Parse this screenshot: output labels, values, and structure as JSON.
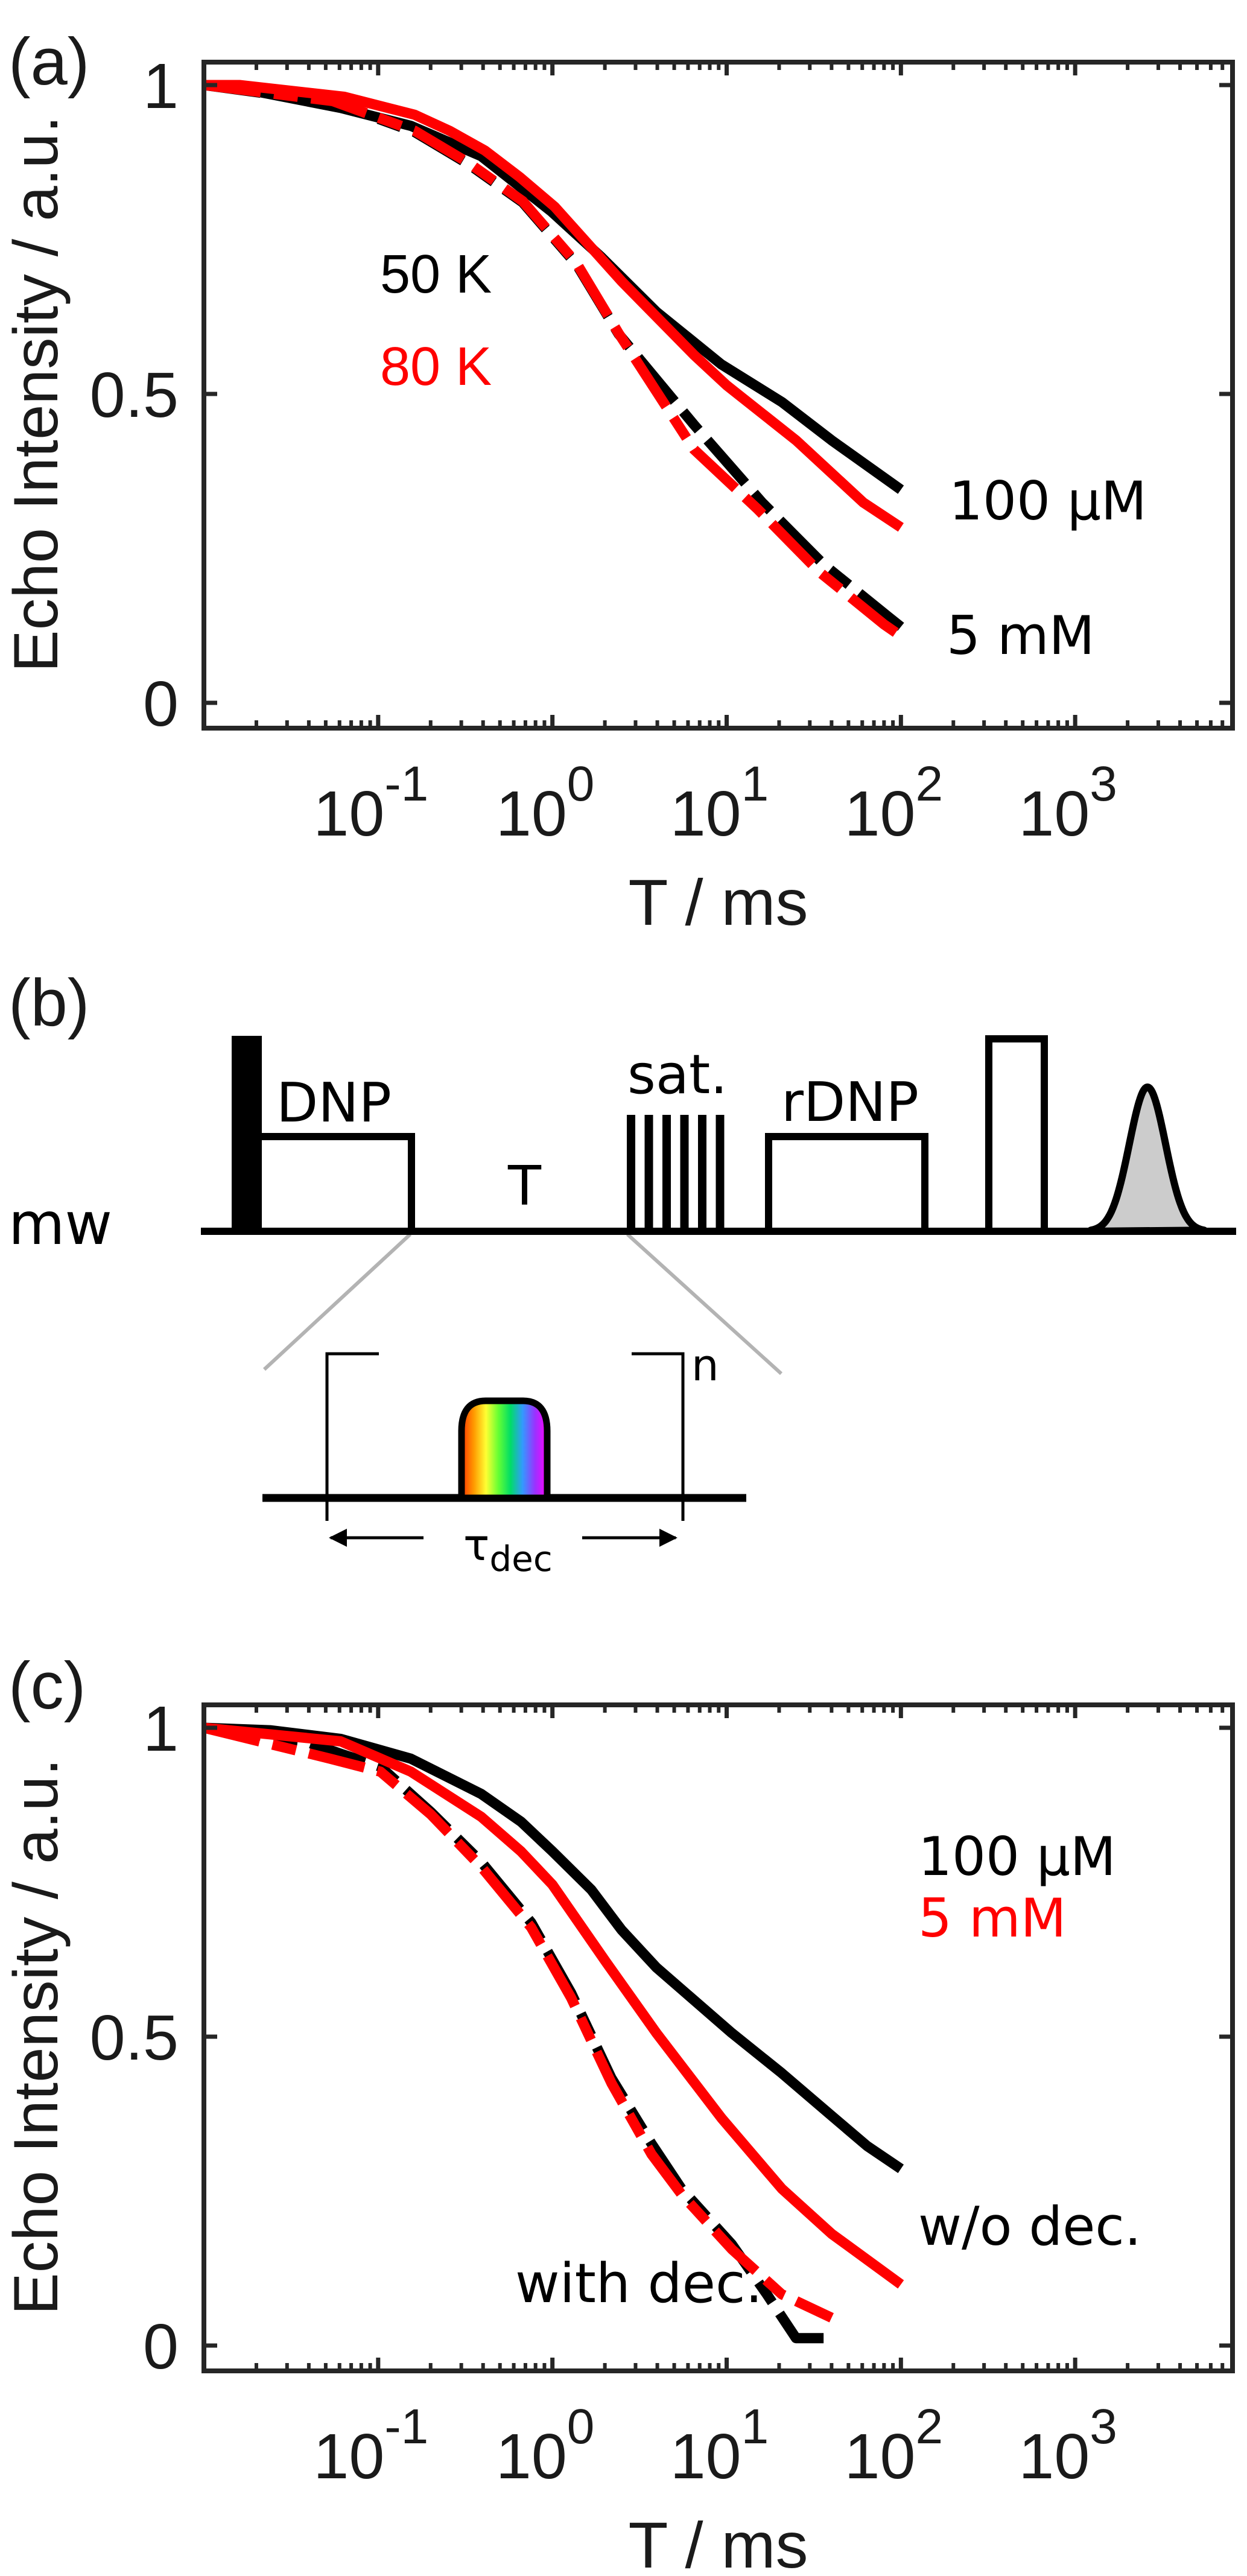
{
  "figure": {
    "panel_labels": [
      "(a)",
      "(b)",
      "(c)"
    ]
  },
  "chart_data": [
    {
      "id": "a",
      "type": "line",
      "panel_label": "(a)",
      "xlabel": "T / ms",
      "ylabel": "Echo Intensity / a.u.",
      "xscale": "log",
      "xlim": [
        0.01,
        8000
      ],
      "ylim": [
        -0.035,
        1.04
      ],
      "xticks": [
        {
          "base": "10",
          "exp": "-1",
          "value": 0.1
        },
        {
          "base": "10",
          "exp": "0",
          "value": 1
        },
        {
          "base": "10",
          "exp": "1",
          "value": 10
        },
        {
          "base": "10",
          "exp": "2",
          "value": 100
        },
        {
          "base": "10",
          "exp": "3",
          "value": 1000
        }
      ],
      "yticks": [
        {
          "label": "0",
          "value": 0
        },
        {
          "label": "0.5",
          "value": 0.5
        },
        {
          "label": "1",
          "value": 1
        }
      ],
      "grid": false,
      "box": true,
      "annotations": [
        {
          "text": "50 K",
          "color": "#000000",
          "x": 0.09,
          "y": 0.67
        },
        {
          "text": "80 K",
          "color": "#ff0000",
          "x": 0.09,
          "y": 0.52
        },
        {
          "text": "100 µM",
          "color": "#000000",
          "x": 200,
          "y": 0.33
        },
        {
          "text": "5 mM",
          "color": "#000000",
          "x": 200,
          "y": 0.1
        }
      ],
      "series": [
        {
          "name": "100 µM, 50 K",
          "color": "#000000",
          "style": "solid",
          "x": [
            0.01,
            0.016,
            0.061,
            0.154,
            0.39,
            0.98,
            1.9,
            3.95,
            9.3,
            20.7,
            40,
            100
          ],
          "y": [
            1.0,
            0.995,
            0.963,
            0.934,
            0.885,
            0.796,
            0.722,
            0.633,
            0.548,
            0.487,
            0.425,
            0.345
          ]
        },
        {
          "name": "100 µM, 80 K",
          "color": "#ff0000",
          "style": "solid",
          "x": [
            0.01,
            0.016,
            0.064,
            0.162,
            0.257,
            0.41,
            0.65,
            1.03,
            2.5,
            6.5,
            10,
            25,
            61,
            100
          ],
          "y": [
            1.0,
            1.0,
            0.981,
            0.952,
            0.926,
            0.894,
            0.851,
            0.803,
            0.682,
            0.563,
            0.514,
            0.425,
            0.324,
            0.284
          ]
        },
        {
          "name": "5 mM, 50 K",
          "color": "#000000",
          "style": "dashdot",
          "x": [
            0.01,
            0.055,
            0.162,
            0.33,
            0.675,
            1.38,
            2.4,
            6.5,
            16,
            36,
            85,
            100
          ],
          "y": [
            1.0,
            0.972,
            0.924,
            0.872,
            0.81,
            0.709,
            0.597,
            0.45,
            0.324,
            0.224,
            0.139,
            0.123
          ]
        },
        {
          "name": "5 mM, 80 K",
          "color": "#ff0000",
          "style": "dashdot",
          "x": [
            0.01,
            0.055,
            0.162,
            0.33,
            0.675,
            1.38,
            2.4,
            6.5,
            15,
            34,
            80,
            100
          ],
          "y": [
            1.0,
            0.974,
            0.926,
            0.874,
            0.812,
            0.711,
            0.598,
            0.41,
            0.314,
            0.212,
            0.127,
            0.108
          ]
        }
      ]
    },
    {
      "id": "c",
      "type": "line",
      "panel_label": "(c)",
      "xlabel": "T / ms",
      "ylabel": "Echo Intensity / a.u.",
      "xscale": "log",
      "xlim": [
        0.01,
        8000
      ],
      "ylim": [
        -0.035,
        1.04
      ],
      "xticks": [
        {
          "base": "10",
          "exp": "-1",
          "value": 0.1
        },
        {
          "base": "10",
          "exp": "0",
          "value": 1
        },
        {
          "base": "10",
          "exp": "1",
          "value": 10
        },
        {
          "base": "10",
          "exp": "2",
          "value": 100
        },
        {
          "base": "10",
          "exp": "3",
          "value": 1000
        }
      ],
      "yticks": [
        {
          "label": "0",
          "value": 0
        },
        {
          "label": "0.5",
          "value": 0.5
        },
        {
          "label": "1",
          "value": 1
        }
      ],
      "grid": false,
      "box": true,
      "annotations": [
        {
          "text": "100 µM",
          "color": "#000000",
          "x": 300,
          "y": 0.77
        },
        {
          "text": "5 mM",
          "color": "#ff0000",
          "x": 300,
          "y": 0.67
        },
        {
          "text": "w/o dec.",
          "color": "#000000",
          "x": 300,
          "y": 0.16
        },
        {
          "text": "with dec.",
          "color": "#000000",
          "x": 0.85,
          "y": 0.07
        }
      ],
      "series": [
        {
          "name": "100 µM w/o dec.",
          "color": "#000000",
          "style": "solid",
          "x": [
            0.01,
            0.024,
            0.061,
            0.154,
            0.39,
            0.66,
            1.0,
            1.67,
            2.49,
            3.95,
            10.7,
            20.7,
            40,
            64,
            100
          ],
          "y": [
            1.0,
            0.996,
            0.982,
            0.95,
            0.893,
            0.848,
            0.8,
            0.738,
            0.673,
            0.612,
            0.506,
            0.441,
            0.372,
            0.323,
            0.286
          ]
        },
        {
          "name": "5 mM w/o dec.",
          "color": "#ff0000",
          "style": "solid",
          "x": [
            0.01,
            0.061,
            0.154,
            0.39,
            0.66,
            1.0,
            2.04,
            3.95,
            9.35,
            20.7,
            40,
            100
          ],
          "y": [
            1.0,
            0.978,
            0.929,
            0.856,
            0.8,
            0.746,
            0.62,
            0.506,
            0.368,
            0.254,
            0.181,
            0.099
          ]
        },
        {
          "name": "100 µM with dec.",
          "color": "#000000",
          "style": "dashdot",
          "x": [
            0.01,
            0.038,
            0.061,
            0.103,
            0.2,
            0.39,
            0.755,
            1.28,
            2.18,
            3.7,
            5.5,
            10.7,
            17,
            25,
            39
          ],
          "y": [
            1.0,
            0.978,
            0.958,
            0.937,
            0.864,
            0.783,
            0.685,
            0.571,
            0.433,
            0.327,
            0.254,
            0.164,
            0.083,
            0.012,
            0.012
          ]
        },
        {
          "name": "5 mM with dec.",
          "color": "#ff0000",
          "style": "dashdot",
          "x": [
            0.01,
            0.053,
            0.103,
            0.2,
            0.39,
            0.755,
            1.28,
            2.18,
            3.7,
            5.5,
            10.7,
            20.7,
            40
          ],
          "y": [
            1.0,
            0.95,
            0.929,
            0.86,
            0.775,
            0.677,
            0.563,
            0.425,
            0.31,
            0.245,
            0.156,
            0.083,
            0.045
          ]
        }
      ]
    }
  ],
  "sequence": {
    "channel_label": "mw",
    "labels": {
      "dnp": "DNP",
      "T": "T",
      "sat": "sat.",
      "rdnp": "rDNP"
    },
    "sat_pulse_count": 6,
    "inset": {
      "repeat_label": "n",
      "tau": "τ",
      "tau_sub": "dec"
    },
    "colors": {
      "echo_fill": "#cccccc",
      "zoom_lines": "#b3b3b3",
      "rainbow": [
        "#ff3300",
        "#ff9900",
        "#ffff33",
        "#66ff33",
        "#00dd66",
        "#3399ff",
        "#9933ff",
        "#ff00ff"
      ]
    }
  }
}
